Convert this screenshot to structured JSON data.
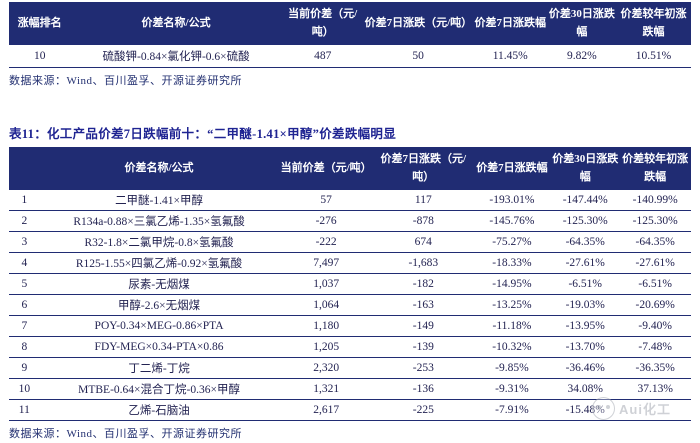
{
  "colors": {
    "header_navy": "#202C73",
    "title_blue": "#1F2492",
    "body_text": "#232352",
    "watermark_gray": "#A8ADB5"
  },
  "table_top": {
    "columns": [
      "涨幅排名",
      "价差名称/公式",
      "当前价差（元/吨）",
      "价差7日涨跌（元/吨）",
      "价差7日涨跌幅",
      "价差30日涨跌幅",
      "价差较年初涨跌幅"
    ],
    "rows": [
      [
        "10",
        "硫酸钾-0.84×氯化钾-0.6×硫酸",
        "487",
        "50",
        "11.45%",
        "9.82%",
        "10.51%"
      ]
    ],
    "source": "数据来源：Wind、百川盈孚、开源证券研究所"
  },
  "table11": {
    "title": "表11：化工产品价差7日跌幅前十：“二甲醚-1.41×甲醇”价差跌幅明显",
    "columns": [
      "",
      "价差名称/公式",
      "当前价差（元/吨）",
      "价差7日涨跌（元/吨）",
      "价差7日涨跌幅",
      "价差30日涨跌幅",
      "价差较年初涨跌幅"
    ],
    "rows": [
      [
        "1",
        "二甲醚-1.41×甲醇",
        "57",
        "117",
        "-193.01%",
        "-147.44%",
        "-140.99%"
      ],
      [
        "2",
        "R134a-0.88×三氯乙烯-1.35×氢氟酸",
        "-276",
        "-878",
        "-145.76%",
        "-125.30%",
        "-125.30%"
      ],
      [
        "3",
        "R32-1.8×二氯甲烷-0.8×氢氟酸",
        "-222",
        "674",
        "-75.27%",
        "-64.35%",
        "-64.35%"
      ],
      [
        "4",
        "R125-1.55×四氯乙烯-0.92×氢氟酸",
        "7,497",
        "-1,683",
        "-18.33%",
        "-27.61%",
        "-27.61%"
      ],
      [
        "5",
        "尿素-无烟煤",
        "1,037",
        "-182",
        "-14.95%",
        "-6.51%",
        "-6.51%"
      ],
      [
        "6",
        "甲醇-2.6×无烟煤",
        "1,064",
        "-163",
        "-13.25%",
        "-19.03%",
        "-20.69%"
      ],
      [
        "7",
        "POY-0.34×MEG-0.86×PTA",
        "1,180",
        "-149",
        "-11.18%",
        "-13.95%",
        "-9.40%"
      ],
      [
        "8",
        "FDY-MEG×0.34-PTA×0.86",
        "1,205",
        "-139",
        "-10.32%",
        "-13.70%",
        "-7.48%"
      ],
      [
        "9",
        "丁二烯-丁烷",
        "2,320",
        "-253",
        "-9.85%",
        "-36.46%",
        "-36.35%"
      ],
      [
        "10",
        "MTBE-0.64×混合丁烷-0.36×甲醇",
        "1,321",
        "-136",
        "-9.31%",
        "34.08%",
        "37.13%"
      ],
      [
        "11",
        "乙烯-石脑油",
        "2,617",
        "-225",
        "-7.91%",
        "-15.48%",
        ""
      ]
    ],
    "source": "数据来源：Wind、百川盈孚、开源证券研究所"
  },
  "watermark": {
    "text": "Aui化工"
  }
}
